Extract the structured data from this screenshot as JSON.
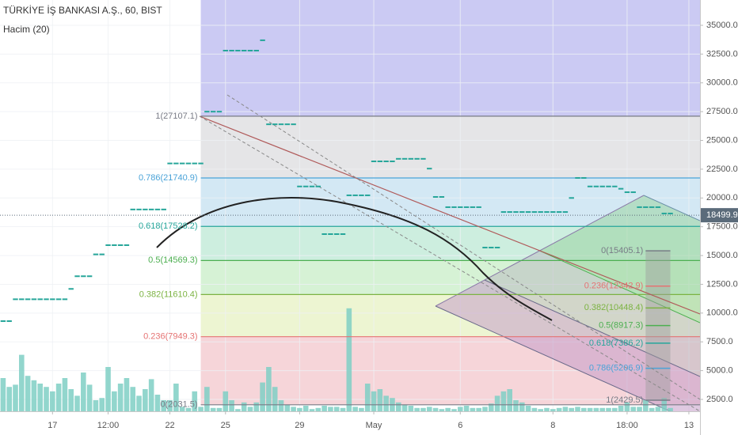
{
  "header": {
    "title": "TÜRKİYE İŞ BANKASI A.Ş., 60, BIST",
    "indicator": "Hacim (20)"
  },
  "chart_data": {
    "type": "dash",
    "xlim": [
      -0.5,
      112.8
    ],
    "xticks": [
      {
        "value": 8,
        "label": "17"
      },
      {
        "value": 17,
        "label": "12:00"
      },
      {
        "value": 27,
        "label": "22"
      },
      {
        "value": 36,
        "label": "25"
      },
      {
        "value": 48,
        "label": "29"
      },
      {
        "value": 60,
        "label": "May"
      },
      {
        "value": 74,
        "label": "6"
      },
      {
        "value": 89,
        "label": "8"
      },
      {
        "value": 101,
        "label": "18:00"
      },
      {
        "value": 111,
        "label": "13"
      }
    ],
    "ylim": [
      1469,
      37198
    ],
    "yticks": [
      {
        "value": 2500,
        "label": "2500.0"
      },
      {
        "value": 5000,
        "label": "5000.0"
      },
      {
        "value": 7500,
        "label": "7500.0"
      },
      {
        "value": 10000,
        "label": "10000.0"
      },
      {
        "value": 12500,
        "label": "12500.0"
      },
      {
        "value": 15000,
        "label": "15000.0"
      },
      {
        "value": 17500,
        "label": "17500.0"
      },
      {
        "value": 20000,
        "label": "20000.0"
      },
      {
        "value": 22500,
        "label": "22500.0"
      },
      {
        "value": 25000,
        "label": "25000.0"
      },
      {
        "value": 27500,
        "label": "27500.0"
      },
      {
        "value": 30000,
        "label": "30000.0"
      },
      {
        "value": 32500,
        "label": "32500.0"
      },
      {
        "value": 35000,
        "label": "35000.0"
      }
    ],
    "grid": true,
    "color": "#26a69a",
    "values": [
      9300,
      9300,
      11200,
      11200,
      11200,
      11200,
      11200,
      11200,
      11200,
      11200,
      11200,
      12100,
      13200,
      13200,
      13200,
      15100,
      15100,
      15900,
      15900,
      15900,
      15900,
      19000,
      19000,
      19000,
      19000,
      19000,
      19000,
      23000,
      23000,
      23000,
      23000,
      23000,
      23000,
      27500,
      27500,
      27500,
      32800,
      32800,
      32800,
      32800,
      32800,
      32800,
      33700,
      26400,
      26400,
      26400,
      26400,
      26400,
      21000,
      21000,
      21000,
      21000,
      16860,
      16860,
      16860,
      16860,
      20230,
      20230,
      20230,
      20230,
      23180,
      23180,
      23180,
      23180,
      23400,
      23400,
      23400,
      23400,
      23400,
      22550,
      20090,
      20090,
      19200,
      19200,
      19200,
      19200,
      19200,
      19200,
      15690,
      15690,
      15690,
      18780,
      18780,
      18780,
      18780,
      18780,
      18780,
      18780,
      18780,
      18780,
      18780,
      18780,
      20000,
      21740,
      21740,
      21000,
      21000,
      21000,
      21000,
      21000,
      20800,
      20500,
      20500,
      19200,
      19200,
      19200,
      19200,
      18650,
      18650
    ],
    "volume": {
      "color": "#7fcfc4",
      "ylim": [
        0,
        100
      ],
      "values": [
        30,
        22,
        24,
        51,
        32,
        28,
        25,
        22,
        18,
        25,
        30,
        20,
        14,
        35,
        24,
        10,
        12,
        40,
        18,
        25,
        30,
        22,
        14,
        20,
        29,
        15,
        10,
        10,
        25,
        4,
        3,
        18,
        4,
        22,
        3,
        3,
        18,
        10,
        2,
        8,
        4,
        8,
        26,
        40,
        22,
        10,
        6,
        4,
        3,
        5,
        2,
        3,
        5,
        4,
        4,
        3,
        93,
        4,
        3,
        25,
        18,
        20,
        14,
        12,
        8,
        6,
        5,
        3,
        3,
        4,
        3,
        2,
        3,
        2,
        4,
        5,
        3,
        3,
        4,
        7,
        14,
        18,
        20,
        10,
        8,
        5,
        3,
        2,
        3,
        2,
        3,
        4,
        3,
        4,
        3,
        3,
        3,
        3,
        3,
        3,
        5,
        8,
        4,
        4,
        10,
        3,
        4,
        12,
        3
      ]
    },
    "last_price": 18499.9,
    "last_price_color": "#5b6b7a",
    "fib": {
      "start": 32,
      "top_color": "#cbcaf3",
      "levels": [
        27107.1,
        21740.9,
        17528.2,
        14569.3,
        11610.4,
        7949.3,
        2031.5
      ],
      "value_labels": [
        "1(27107.1)",
        "0.786(21740.9)",
        "0.618(17528.2)",
        "0.5(14569.3)",
        "0.382(11610.4)",
        "0.236(7949.3)",
        "0(2031.5)"
      ],
      "colors": [
        "#787b86",
        "#4aa3d8",
        "#26a69a",
        "#4caf50",
        "#7cb342",
        "#e57373",
        "#787b86"
      ],
      "zone_colors": [
        "#e5e5e7",
        "#d3e8f4",
        "#cdeedf",
        "#d6f2d5",
        "#edf5d2",
        "#f6d5d9"
      ]
    },
    "fib2": {
      "start": 104,
      "end": 108,
      "levels": [
        15405.1,
        12342.9,
        10448.4,
        8917.3,
        7386.2,
        5206.9,
        2429.5
      ],
      "value_labels": [
        "0(15405.1)",
        "0.236(12342.9)",
        "0.382(10448.4)",
        "0.5(8917.3)",
        "0.618(7386.2)",
        "0.786(5206.9)",
        "1(2429.5)"
      ],
      "colors": [
        "#787b86",
        "#e57373",
        "#7cb342",
        "#4caf50",
        "#26a69a",
        "#4aa3d8",
        "#787b86"
      ]
    }
  }
}
